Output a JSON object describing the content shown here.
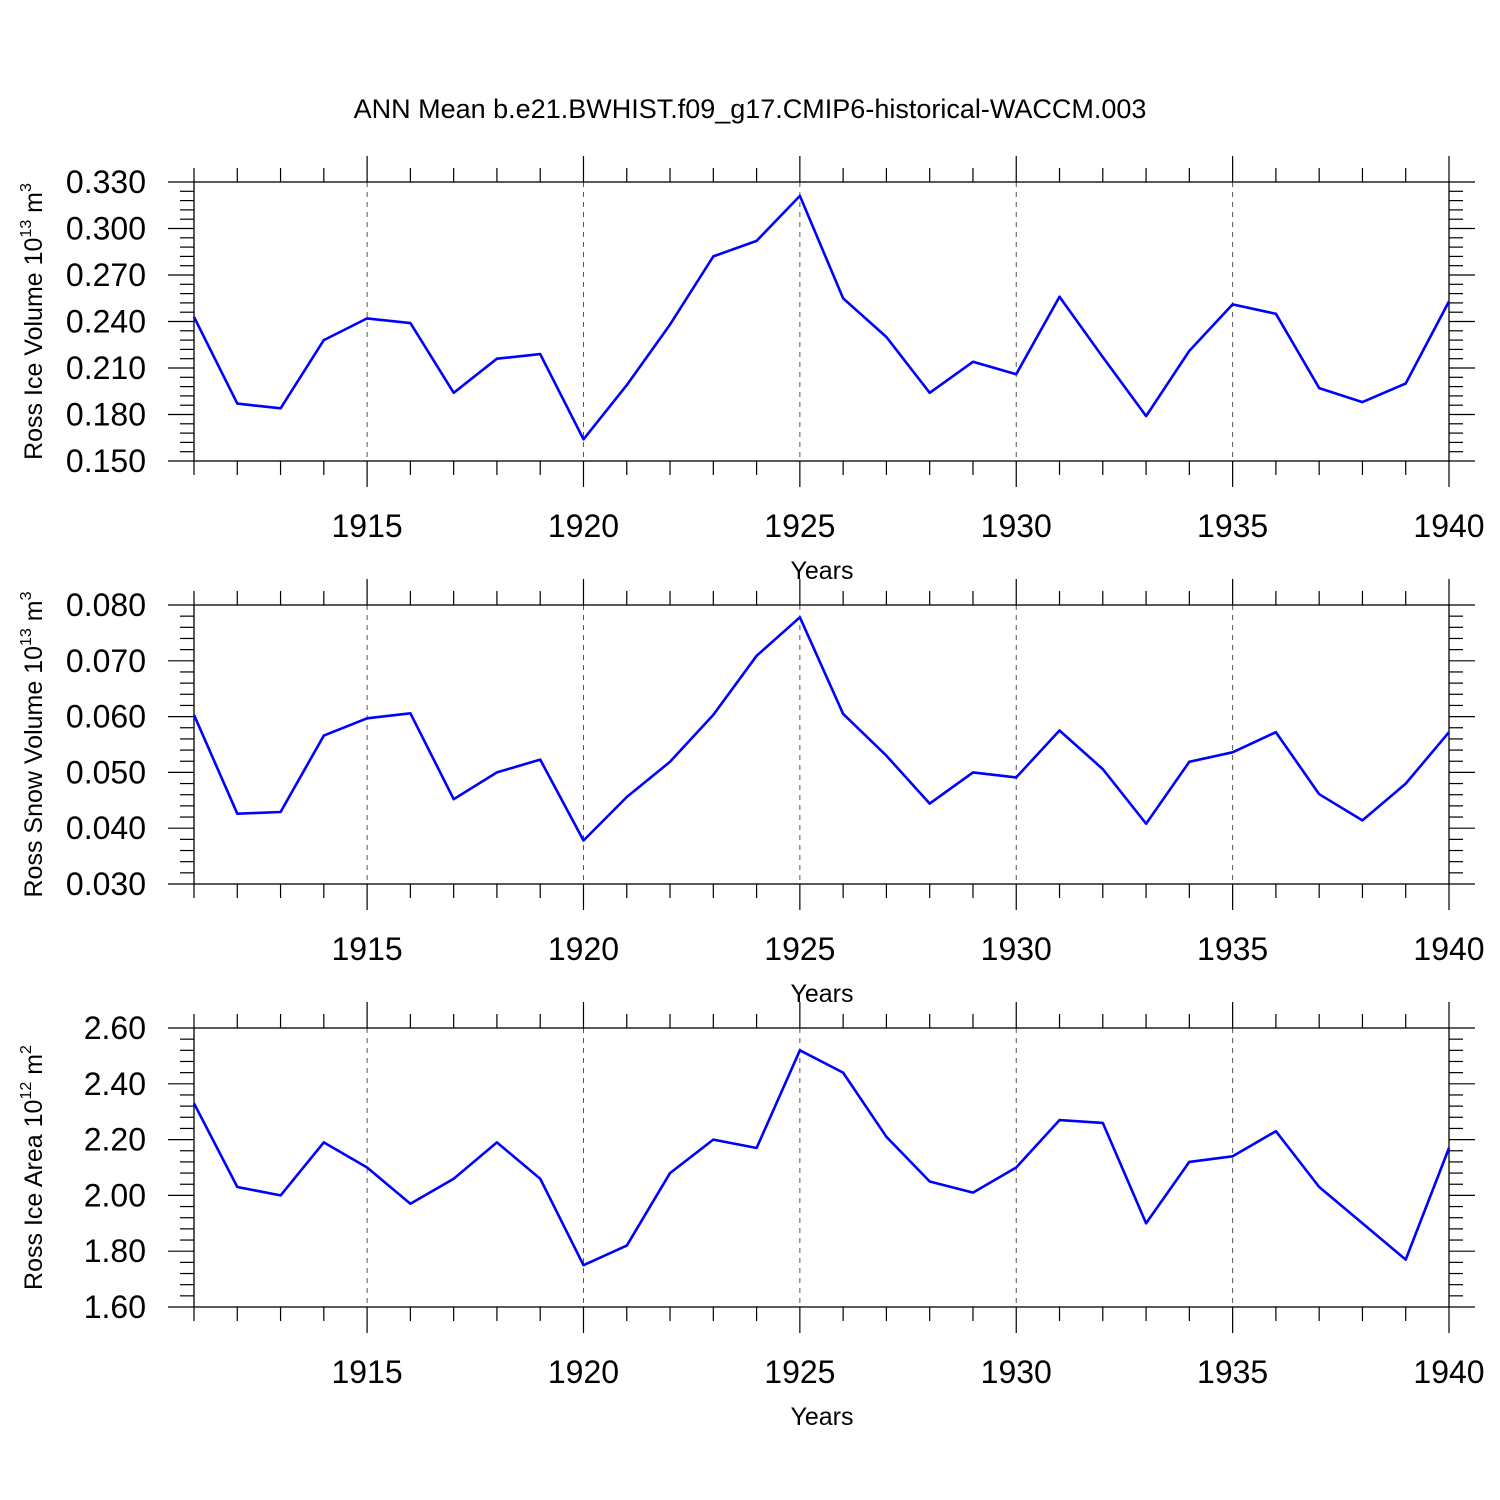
{
  "title": "ANN Mean b.e21.BWHIST.f09_g17.CMIP6-historical-WACCM.003",
  "chart_data": [
    {
      "type": "line",
      "ylabel": "Ross Ice Volume 10",
      "ylabel_exp": "13",
      "ylabel_unit": " m",
      "ylabel_unit_exp": "3",
      "xlabel": "Years",
      "xlim": [
        1911,
        1940
      ],
      "ylim": [
        0.15,
        0.33
      ],
      "yticks": [
        "0.150",
        "0.180",
        "0.210",
        "0.240",
        "0.270",
        "0.300",
        "0.330"
      ],
      "xticks": [
        "1915",
        "1920",
        "1925",
        "1930",
        "1935",
        "1940"
      ],
      "grid_x": true,
      "line_color": "#0000ff",
      "x": [
        1911,
        1912,
        1913,
        1914,
        1915,
        1916,
        1917,
        1918,
        1919,
        1920,
        1921,
        1922,
        1923,
        1924,
        1925,
        1926,
        1927,
        1928,
        1929,
        1930,
        1931,
        1932,
        1933,
        1934,
        1935,
        1936,
        1937,
        1938,
        1939,
        1940
      ],
      "values": [
        0.243,
        0.187,
        0.184,
        0.228,
        0.242,
        0.239,
        0.194,
        0.216,
        0.219,
        0.164,
        0.199,
        0.238,
        0.282,
        0.292,
        0.321,
        0.255,
        0.23,
        0.194,
        0.214,
        0.206,
        0.256,
        0.217,
        0.179,
        0.221,
        0.251,
        0.245,
        0.197,
        0.188,
        0.2,
        0.253
      ]
    },
    {
      "type": "line",
      "ylabel": "Ross Snow Volume 10",
      "ylabel_exp": "13",
      "ylabel_unit": " m",
      "ylabel_unit_exp": "3",
      "xlabel": "Years",
      "xlim": [
        1911,
        1940
      ],
      "ylim": [
        0.03,
        0.08
      ],
      "yticks": [
        "0.030",
        "0.040",
        "0.050",
        "0.060",
        "0.070",
        "0.080"
      ],
      "xticks": [
        "1915",
        "1920",
        "1925",
        "1930",
        "1935",
        "1940"
      ],
      "grid_x": true,
      "line_color": "#0000ff",
      "x": [
        1911,
        1912,
        1913,
        1914,
        1915,
        1916,
        1917,
        1918,
        1919,
        1920,
        1921,
        1922,
        1923,
        1924,
        1925,
        1926,
        1927,
        1928,
        1929,
        1930,
        1931,
        1932,
        1933,
        1934,
        1935,
        1936,
        1937,
        1938,
        1939,
        1940
      ],
      "values": [
        0.0603,
        0.0426,
        0.0429,
        0.0566,
        0.0597,
        0.0606,
        0.0452,
        0.05,
        0.0523,
        0.0378,
        0.0456,
        0.0519,
        0.0603,
        0.0709,
        0.0778,
        0.0605,
        0.053,
        0.0444,
        0.05,
        0.0491,
        0.0575,
        0.0506,
        0.0408,
        0.0519,
        0.0536,
        0.0572,
        0.0461,
        0.0414,
        0.048,
        0.0572
      ]
    },
    {
      "type": "line",
      "ylabel": "Ross Ice Area 10",
      "ylabel_exp": "12",
      "ylabel_unit": " m",
      "ylabel_unit_exp": "2",
      "xlabel": "Years",
      "xlim": [
        1911,
        1940
      ],
      "ylim": [
        1.6,
        2.6
      ],
      "yticks": [
        "1.60",
        "1.80",
        "2.00",
        "2.20",
        "2.40",
        "2.60"
      ],
      "xticks": [
        "1915",
        "1920",
        "1925",
        "1930",
        "1935",
        "1940"
      ],
      "grid_x": true,
      "line_color": "#0000ff",
      "x": [
        1911,
        1912,
        1913,
        1914,
        1915,
        1916,
        1917,
        1918,
        1919,
        1920,
        1921,
        1922,
        1923,
        1924,
        1925,
        1926,
        1927,
        1928,
        1929,
        1930,
        1931,
        1932,
        1933,
        1934,
        1935,
        1936,
        1937,
        1938,
        1939,
        1940
      ],
      "values": [
        2.33,
        2.03,
        2.0,
        2.19,
        2.1,
        1.97,
        2.06,
        2.19,
        2.06,
        1.75,
        1.82,
        2.08,
        2.2,
        2.17,
        2.52,
        2.44,
        2.21,
        2.05,
        2.01,
        2.1,
        2.27,
        2.26,
        1.9,
        2.12,
        2.14,
        2.23,
        2.03,
        1.9,
        1.77,
        2.17
      ]
    }
  ]
}
